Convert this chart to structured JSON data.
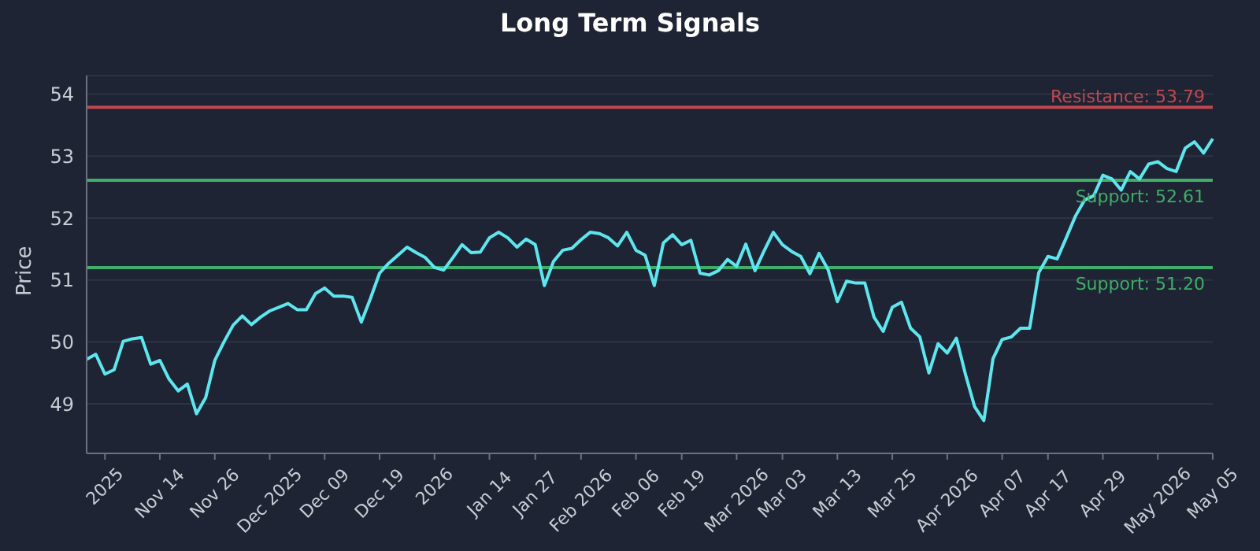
{
  "chart_data": {
    "type": "line",
    "title": "Long Term Signals",
    "ylabel": "Price",
    "categories": [
      null,
      null,
      "2025",
      null,
      null,
      null,
      null,
      null,
      "Nov 14",
      null,
      null,
      null,
      null,
      null,
      "Nov 26",
      null,
      null,
      null,
      null,
      null,
      "Dec 2025",
      null,
      null,
      null,
      null,
      null,
      "Dec 09",
      null,
      null,
      null,
      null,
      null,
      "Dec 19",
      null,
      null,
      null,
      null,
      null,
      "2026",
      null,
      null,
      null,
      null,
      null,
      "Jan 14",
      null,
      null,
      null,
      null,
      "Jan 27",
      null,
      null,
      null,
      null,
      "Feb 2026",
      null,
      null,
      null,
      null,
      null,
      "Feb 06",
      null,
      null,
      null,
      null,
      "Feb 19",
      null,
      null,
      null,
      null,
      null,
      "Mar 2026",
      null,
      null,
      null,
      null,
      "Mar 03",
      null,
      null,
      null,
      null,
      null,
      "Mar 13",
      null,
      null,
      null,
      null,
      null,
      "Mar 25",
      null,
      null,
      null,
      null,
      null,
      "Apr 2026",
      null,
      null,
      null,
      null,
      null,
      "Apr 07",
      null,
      null,
      null,
      null,
      "Apr 17",
      null,
      null,
      null,
      null,
      null,
      "Apr 29",
      null,
      null,
      null,
      null,
      null,
      "May 2026",
      null,
      null,
      null,
      null,
      null,
      "May 05"
    ],
    "series": [
      {
        "color": "#5ee6ee",
        "values": [
          49.72,
          49.8,
          49.48,
          49.55,
          50.01,
          50.05,
          50.07,
          49.64,
          49.7,
          49.4,
          49.21,
          49.32,
          48.84,
          49.1,
          49.7,
          50.0,
          50.27,
          50.42,
          50.28,
          50.4,
          50.5,
          50.56,
          50.62,
          50.52,
          50.52,
          50.78,
          50.87,
          50.74,
          50.74,
          50.72,
          50.32,
          50.7,
          51.11,
          51.27,
          51.4,
          51.53,
          51.44,
          51.36,
          51.2,
          51.16,
          51.36,
          51.57,
          51.44,
          51.45,
          51.68,
          51.77,
          51.68,
          51.53,
          51.66,
          51.57,
          50.91,
          51.3,
          51.48,
          51.51,
          51.65,
          51.77,
          51.75,
          51.68,
          51.55,
          51.77,
          51.48,
          51.4,
          50.91,
          51.6,
          51.73,
          51.57,
          51.64,
          51.11,
          51.08,
          51.15,
          51.33,
          51.22,
          51.58,
          51.15,
          51.47,
          51.77,
          51.57,
          51.46,
          51.38,
          51.1,
          51.43,
          51.16,
          50.65,
          50.98,
          50.95,
          50.95,
          50.4,
          50.17,
          50.56,
          50.64,
          50.22,
          50.08,
          49.5,
          49.97,
          49.82,
          50.06,
          49.47,
          48.95,
          48.73,
          49.73,
          50.04,
          50.08,
          50.22,
          50.22,
          51.12,
          51.38,
          51.34,
          51.68,
          52.03,
          52.29,
          52.36,
          52.69,
          52.63,
          52.45,
          52.75,
          52.63,
          52.87,
          52.91,
          52.8,
          52.75,
          53.13,
          53.23,
          53.05,
          53.28
        ]
      }
    ],
    "ylim": [
      48.2,
      54.3
    ],
    "yticks": [
      49,
      50,
      51,
      52,
      53,
      54
    ],
    "grid": "y",
    "marker": "none",
    "line_style": "solid",
    "ref_lines": [
      {
        "axis": "y",
        "value": 53.79,
        "label": "Resistance: 53.79",
        "color": "#c0474f"
      },
      {
        "axis": "y",
        "value": 52.61,
        "label": "Support: 52.61",
        "color": "#3fae68"
      },
      {
        "axis": "y",
        "value": 51.2,
        "label": "Support: 51.20",
        "color": "#3fae68"
      }
    ]
  }
}
